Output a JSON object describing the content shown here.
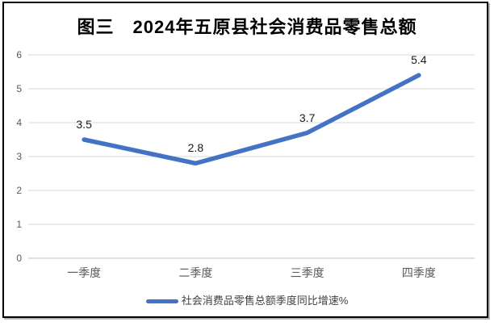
{
  "title": "图三　2024年五原县社会消费品零售总额",
  "legend": {
    "label": "社会消费品零售总额季度同比增速%"
  },
  "colors": {
    "line": "#4472C4",
    "gridline": "#D9D9D9",
    "axis_line": "#BFBFBF",
    "tick_text": "#595959",
    "data_label": "#1a1a1a",
    "border": "#000000"
  },
  "chart_data": {
    "type": "line",
    "title": "图三　2024年五原县社会消费品零售总额",
    "categories": [
      "一季度",
      "二季度",
      "三季度",
      "四季度"
    ],
    "series": [
      {
        "name": "社会消费品零售总额季度同比增速%",
        "values": [
          3.5,
          2.8,
          3.7,
          5.4
        ]
      }
    ],
    "data_labels": [
      "3.5",
      "2.8",
      "3.7",
      "5.4"
    ],
    "xlabel": "",
    "ylabel": "",
    "ylim": [
      0,
      6
    ],
    "yticks": [
      0,
      1,
      2,
      3,
      4,
      5,
      6
    ],
    "grid": "horizontal",
    "legend_position": "bottom",
    "line_width": 5.5
  }
}
